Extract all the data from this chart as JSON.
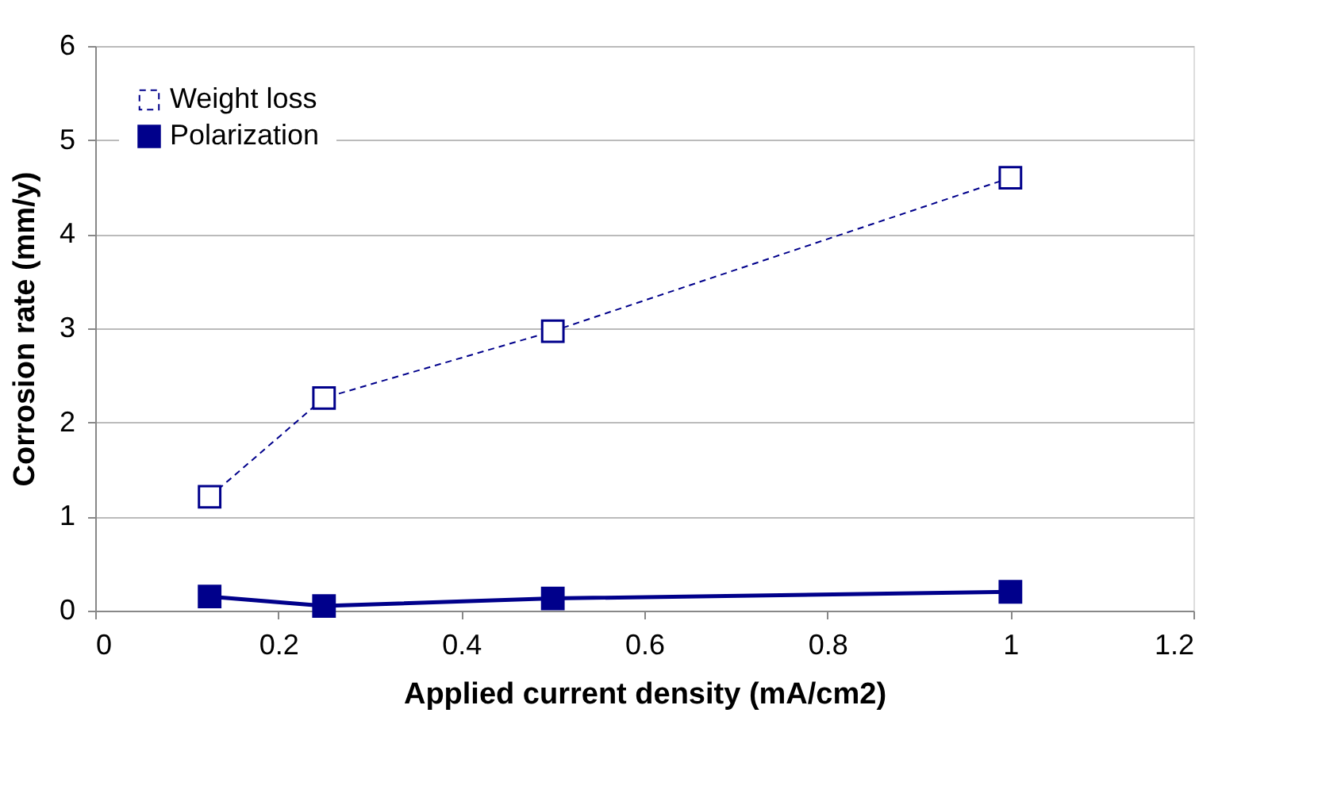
{
  "chart_data": {
    "type": "line",
    "xlabel": "Applied current density (mA/cm2)",
    "ylabel": "Corrosion rate (mm/y)",
    "xlim": [
      0,
      1.2
    ],
    "xticks": [
      0,
      0.2,
      0.4,
      0.6,
      0.8,
      1,
      1.2
    ],
    "ylim": [
      0,
      6
    ],
    "yticks": [
      0,
      1,
      2,
      3,
      4,
      5,
      6
    ],
    "grid": "y",
    "legend": "top left",
    "marker": "square",
    "x": [
      0.125,
      0.25,
      0.5,
      1
    ],
    "series": [
      {
        "name": "Weight loss",
        "color": "#00008b",
        "values": [
          1.21,
          2.26,
          2.97,
          4.6
        ],
        "line_style": "dashed"
      },
      {
        "name": "Polarization",
        "color": "#00008b",
        "values": [
          0.15,
          0.05,
          0.13,
          0.2
        ],
        "line_style": "solid"
      }
    ]
  }
}
